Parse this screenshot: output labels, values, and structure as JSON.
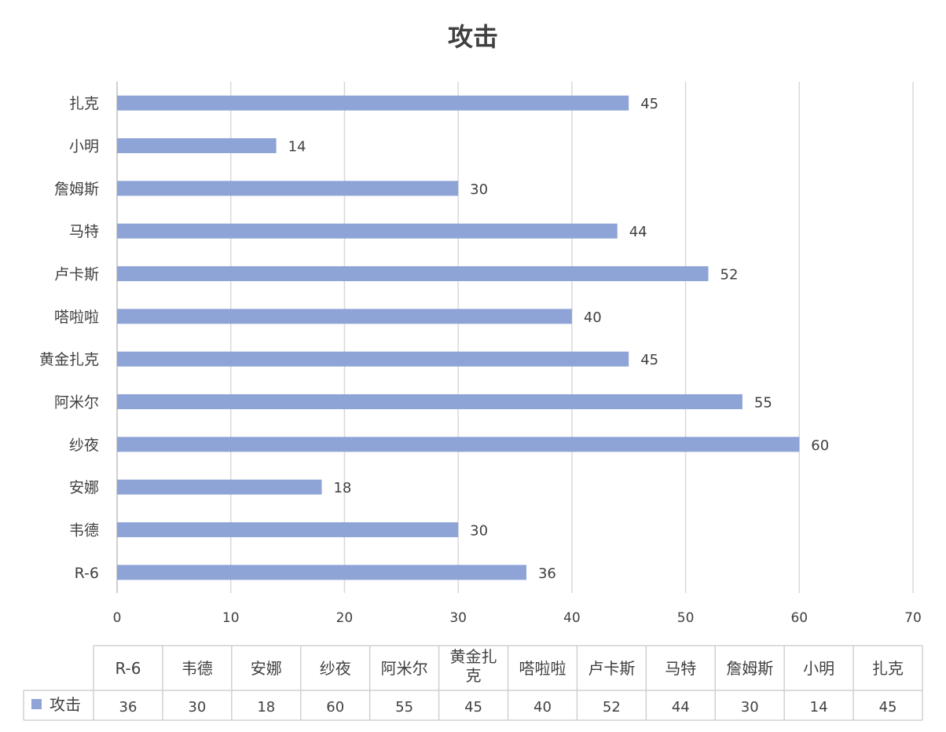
{
  "chart_data": {
    "type": "bar",
    "orientation": "horizontal",
    "title": "攻击",
    "categories": [
      "R-6",
      "韦德",
      "安娜",
      "纱夜",
      "阿米尔",
      "黄金扎克",
      "嗒啦啦",
      "卢卡斯",
      "马特",
      "詹姆斯",
      "小明",
      "扎克"
    ],
    "series": [
      {
        "name": "攻击",
        "values": [
          36,
          30,
          18,
          60,
          55,
          45,
          40,
          52,
          44,
          30,
          14,
          45
        ],
        "color": "#8ea4d6"
      }
    ],
    "xlim": [
      0,
      70
    ],
    "xticks": [
      0,
      10,
      20,
      30,
      40,
      50,
      60,
      70
    ],
    "xlabel": "",
    "ylabel": "",
    "grid": true,
    "data_labels": true,
    "data_table": true,
    "category_order_on_axis": "first category at bottom"
  }
}
